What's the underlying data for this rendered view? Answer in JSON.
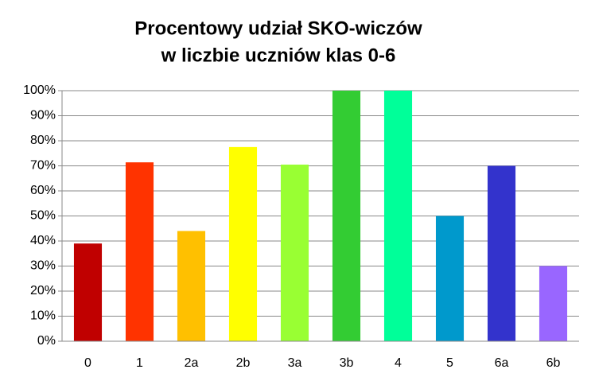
{
  "chart_data": {
    "type": "bar",
    "title": [
      "Procentowy udział SKO-wiczów",
      "w liczbie uczniów klas 0-6"
    ],
    "categories": [
      "0",
      "1",
      "2a",
      "2b",
      "3a",
      "3b",
      "4",
      "5",
      "6a",
      "6b"
    ],
    "values": [
      39,
      71.4,
      44,
      77.5,
      70.5,
      100,
      100,
      50,
      70,
      30
    ],
    "colors": [
      "#c00000",
      "#ff3300",
      "#ffc000",
      "#ffff00",
      "#99ff33",
      "#33cc33",
      "#00ff99",
      "#0099cc",
      "#3333cc",
      "#9966ff"
    ],
    "ylim": [
      0,
      100
    ],
    "yticks": [
      {
        "value": 0,
        "label": "0%"
      },
      {
        "value": 10,
        "label": "10%"
      },
      {
        "value": 20,
        "label": "20%"
      },
      {
        "value": 30,
        "label": "30%"
      },
      {
        "value": 40,
        "label": "40%"
      },
      {
        "value": 50,
        "label": "50%"
      },
      {
        "value": 60,
        "label": "60%"
      },
      {
        "value": 70,
        "label": "70%"
      },
      {
        "value": 80,
        "label": "80%"
      },
      {
        "value": 90,
        "label": "90%"
      },
      {
        "value": 100,
        "label": "100%"
      }
    ],
    "grid": true
  }
}
